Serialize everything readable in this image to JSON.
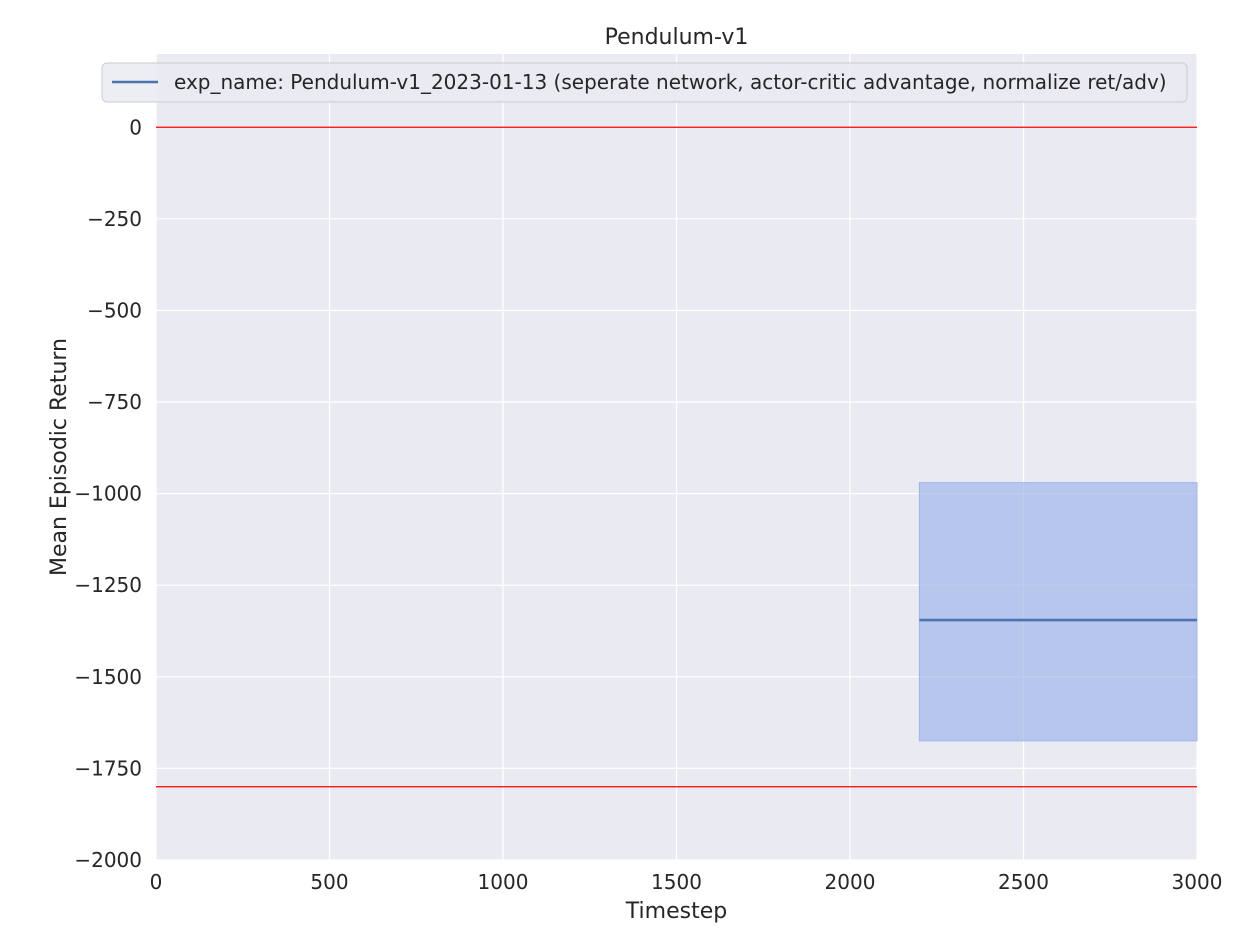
{
  "chart_data": {
    "type": "line",
    "title": "Pendulum-v1",
    "xlabel": "Timestep",
    "ylabel": "Mean Episodic Return",
    "xlim": [
      0,
      3000
    ],
    "ylim": [
      -2000,
      200
    ],
    "xticks": [
      0,
      500,
      1000,
      1500,
      2000,
      2500,
      3000
    ],
    "yticks": [
      0,
      -250,
      -500,
      -750,
      -1000,
      -1250,
      -1500,
      -1750,
      -2000
    ],
    "xtick_labels": [
      "0",
      "500",
      "1000",
      "1500",
      "2000",
      "2500",
      "3000"
    ],
    "ytick_labels": [
      "0",
      "−250",
      "−500",
      "−750",
      "−1000",
      "−1250",
      "−1500",
      "−1750",
      "−2000"
    ],
    "grid": true,
    "legend_position": "top",
    "series": [
      {
        "name": "exp_name: Pendulum-v1_2023-01-13 (seperate network, actor-critic advantage, normalize ret/adv)",
        "color": "#4c72b0",
        "x": [
          2200,
          3000
        ],
        "y": [
          -1345,
          -1345
        ],
        "band_upper": [
          -970,
          -970
        ],
        "band_lower": [
          -1675,
          -1675
        ]
      }
    ],
    "reference_lines": [
      {
        "y": 0,
        "color": "#ff0000"
      },
      {
        "y": -1800,
        "color": "#ff0000"
      }
    ],
    "colors": {
      "plot_background": "#eaeaf2",
      "grid": "#ffffff",
      "band_fill": "#a1b6ea"
    }
  }
}
